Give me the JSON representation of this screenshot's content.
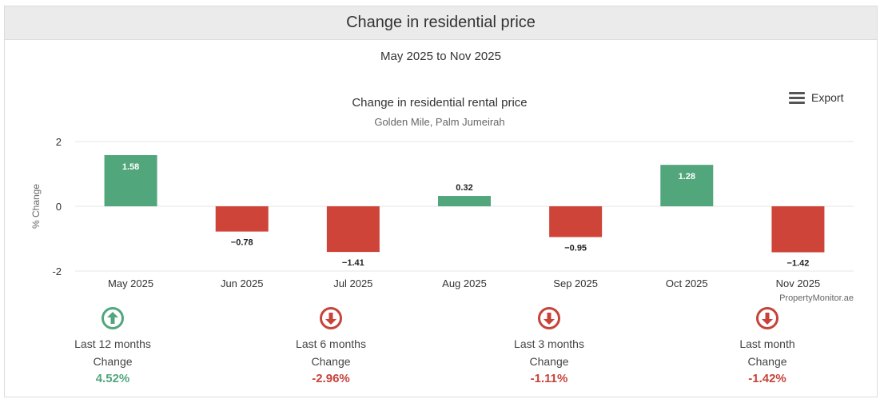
{
  "header": {
    "title": "Change in residential price"
  },
  "period": "May 2025 to Nov 2025",
  "export_label": "Export",
  "colors": {
    "positive": "#52a67c",
    "negative": "#cf4438",
    "up_icon": "#52a67c",
    "down_icon": "#c7433a"
  },
  "chart_data": {
    "type": "bar",
    "title": "Change in residential rental price",
    "subtitle": "Golden Mile, Palm Jumeirah",
    "xlabel": "",
    "ylabel": "% Change",
    "categories": [
      "May 2025",
      "Jun 2025",
      "Jul 2025",
      "Aug 2025",
      "Sep 2025",
      "Oct 2025",
      "Nov 2025"
    ],
    "values": [
      1.58,
      -0.78,
      -1.41,
      0.32,
      -0.95,
      1.28,
      -1.42
    ],
    "ylim": [
      -2,
      2
    ],
    "yticks": [
      2,
      0,
      -2
    ],
    "grid": true,
    "credit": "PropertyMonitor.ae"
  },
  "summary": [
    {
      "direction": "up",
      "label": "Last 12 months",
      "sub": "Change",
      "value": "4.52%"
    },
    {
      "direction": "down",
      "label": "Last 6 months",
      "sub": "Change",
      "value": "-2.96%"
    },
    {
      "direction": "down",
      "label": "Last 3 months",
      "sub": "Change",
      "value": "-1.11%"
    },
    {
      "direction": "down",
      "label": "Last month",
      "sub": "Change",
      "value": "-1.42%"
    }
  ]
}
